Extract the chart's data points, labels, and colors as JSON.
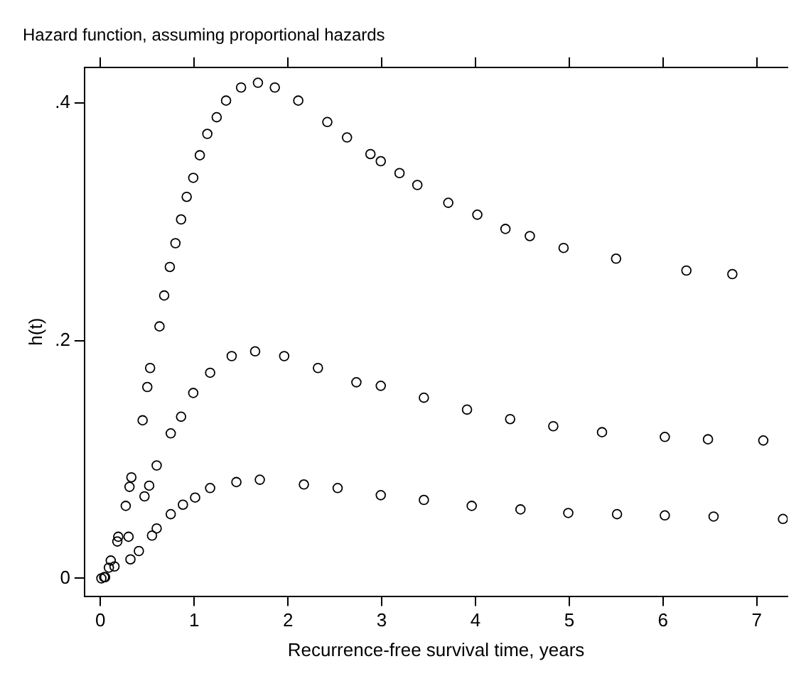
{
  "chart_data": {
    "type": "scatter",
    "title": "Hazard function, assuming proportional hazards",
    "xlabel": "Recurrence-free survival time, years",
    "ylabel": "h(t)",
    "xlim": [
      -0.17,
      7.33
    ],
    "ylim": [
      -0.015,
      0.43
    ],
    "xticks": [
      0,
      1,
      2,
      3,
      4,
      5,
      6,
      7
    ],
    "yticks": [
      0,
      {
        "value": 0.2,
        "label": ".2"
      },
      {
        "value": 0.4,
        "label": ".4"
      }
    ],
    "grid": false,
    "legend": false,
    "marker": "circle",
    "series": [
      {
        "color": "#000000",
        "x": [
          0.04,
          0.11,
          0.18,
          0.19,
          0.27,
          0.31,
          0.33,
          0.45,
          0.5,
          0.53,
          0.63,
          0.68,
          0.74,
          0.8,
          0.86,
          0.92,
          0.99,
          1.06,
          1.14,
          1.24,
          1.34,
          1.5,
          1.68,
          1.86,
          2.11,
          2.42,
          2.63,
          2.88,
          2.99,
          3.19,
          3.38,
          3.71,
          4.02,
          4.32,
          4.58,
          4.94,
          5.5,
          6.25,
          6.74
        ],
        "values": [
          0.001,
          0.015,
          0.031,
          0.035,
          0.061,
          0.077,
          0.085,
          0.133,
          0.161,
          0.177,
          0.212,
          0.238,
          0.262,
          0.282,
          0.302,
          0.321,
          0.337,
          0.356,
          0.374,
          0.388,
          0.402,
          0.413,
          0.417,
          0.413,
          0.402,
          0.384,
          0.371,
          0.357,
          0.351,
          0.341,
          0.331,
          0.316,
          0.306,
          0.294,
          0.288,
          0.278,
          0.269,
          0.259,
          0.256
        ]
      },
      {
        "color": "#000000",
        "x": [
          0.05,
          0.15,
          0.3,
          0.47,
          0.52,
          0.6,
          0.75,
          0.86,
          0.99,
          1.17,
          1.4,
          1.65,
          1.96,
          2.32,
          2.73,
          2.99,
          3.45,
          3.91,
          4.37,
          4.83,
          5.35,
          6.02,
          6.48,
          7.07
        ],
        "values": [
          0.001,
          0.01,
          0.035,
          0.069,
          0.078,
          0.095,
          0.122,
          0.136,
          0.156,
          0.173,
          0.187,
          0.191,
          0.187,
          0.177,
          0.165,
          0.162,
          0.152,
          0.142,
          0.134,
          0.128,
          0.123,
          0.119,
          0.117,
          0.116
        ]
      },
      {
        "color": "#000000",
        "x": [
          0.01,
          0.09,
          0.32,
          0.41,
          0.55,
          0.6,
          0.75,
          0.88,
          1.01,
          1.17,
          1.45,
          1.7,
          2.17,
          2.53,
          2.99,
          3.45,
          3.96,
          4.48,
          4.99,
          5.51,
          6.02,
          6.54,
          7.28
        ],
        "values": [
          0.0,
          0.009,
          0.016,
          0.023,
          0.036,
          0.042,
          0.054,
          0.062,
          0.068,
          0.076,
          0.081,
          0.083,
          0.079,
          0.076,
          0.07,
          0.066,
          0.061,
          0.058,
          0.055,
          0.054,
          0.053,
          0.052,
          0.05
        ]
      }
    ]
  }
}
